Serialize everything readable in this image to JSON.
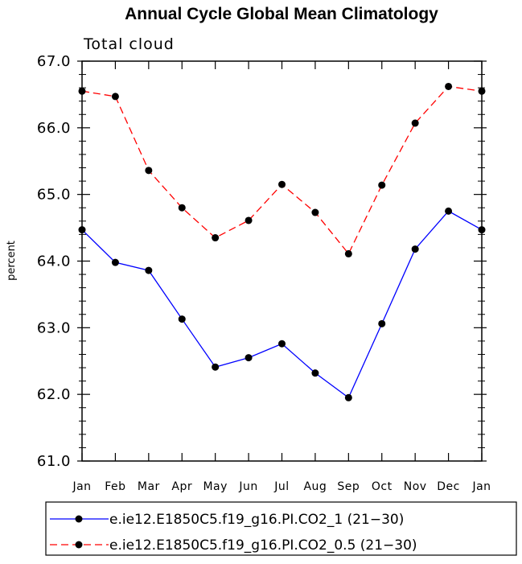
{
  "chart_data": {
    "type": "line",
    "title": "Annual Cycle Global Mean Climatology",
    "subtitle": "Total cloud",
    "ylabel": "percent",
    "xlabel": "",
    "categories": [
      "Jan",
      "Feb",
      "Mar",
      "Apr",
      "May",
      "Jun",
      "Jul",
      "Aug",
      "Sep",
      "Oct",
      "Nov",
      "Dec",
      "Jan"
    ],
    "ylim": [
      61.0,
      67.0
    ],
    "yticks": [
      "61.0",
      "62.0",
      "63.0",
      "64.0",
      "65.0",
      "66.0",
      "67.0"
    ],
    "grid": false,
    "legend_position": "bottom",
    "series": [
      {
        "name": "e.ie12.E1850C5.f19_g16.PI.CO2_1 (21−30)",
        "color": "#0000ff",
        "dashed": false,
        "values": [
          64.47,
          63.98,
          63.86,
          63.13,
          62.41,
          62.55,
          62.76,
          62.32,
          61.95,
          63.06,
          64.18,
          64.75,
          64.47
        ]
      },
      {
        "name": "e.ie12.E1850C5.f19_g16.PI.CO2_0.5 (21−30)",
        "color": "#ff0000",
        "dashed": true,
        "values": [
          66.55,
          66.47,
          65.36,
          64.8,
          64.35,
          64.61,
          65.15,
          64.73,
          64.11,
          65.14,
          66.07,
          66.62,
          66.55
        ]
      }
    ]
  }
}
